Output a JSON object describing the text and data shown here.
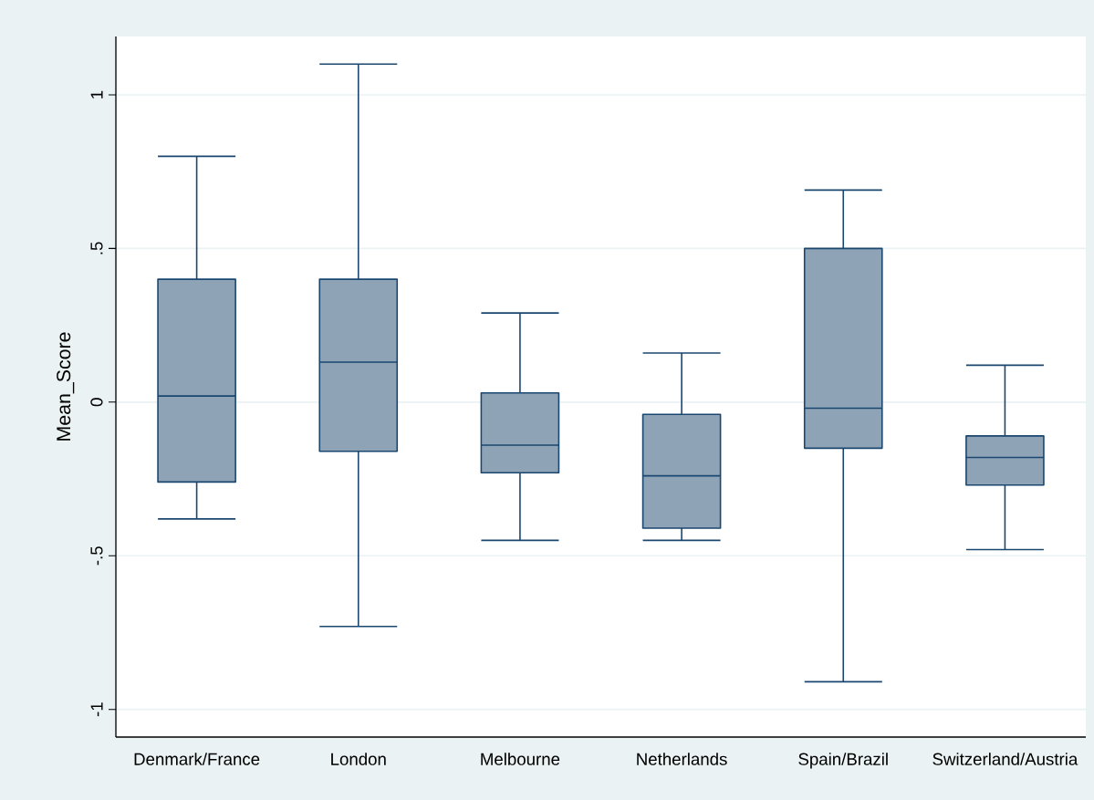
{
  "chart_data": {
    "type": "box",
    "ylabel": "Mean_Score",
    "categories": [
      "Denmark/France",
      "London",
      "Melbourne",
      "Netherlands",
      "Spain/Brazil",
      "Switzerland/Austria"
    ],
    "boxes": [
      {
        "low": -0.38,
        "q1": -0.26,
        "median": 0.02,
        "q3": 0.4,
        "high": 0.8
      },
      {
        "low": -0.73,
        "q1": -0.16,
        "median": 0.13,
        "q3": 0.4,
        "high": 1.1
      },
      {
        "low": -0.45,
        "q1": -0.23,
        "median": -0.14,
        "q3": 0.03,
        "high": 0.29
      },
      {
        "low": -0.45,
        "q1": -0.41,
        "median": -0.24,
        "q3": -0.04,
        "high": 0.16
      },
      {
        "low": -0.91,
        "q1": -0.15,
        "median": -0.02,
        "q3": 0.5,
        "high": 0.69
      },
      {
        "low": -0.48,
        "q1": -0.27,
        "median": -0.18,
        "q3": -0.11,
        "high": 0.12
      }
    ],
    "color": "#8fa3b6",
    "ylim": [
      -1.09,
      1.19
    ],
    "yticks": [
      {
        "value": -1,
        "label": "-1"
      },
      {
        "value": -0.5,
        "label": "-.5"
      },
      0,
      {
        "value": 0.5,
        "label": ".5"
      },
      1
    ],
    "grid": "y"
  }
}
